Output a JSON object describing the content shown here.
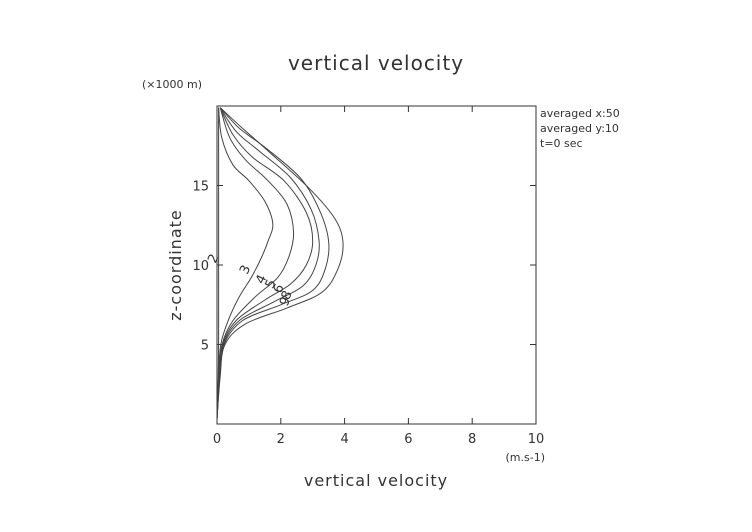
{
  "chart_data": {
    "type": "line",
    "title": "vertical velocity",
    "xlabel": "vertical velocity",
    "x_unit": "(m.s-1)",
    "ylabel": "z-coordinate",
    "y_unit": "(×1000 m)",
    "xlim": [
      0,
      10
    ],
    "ylim": [
      0,
      20
    ],
    "x_ticks": [
      0,
      2,
      4,
      6,
      8,
      10
    ],
    "y_ticks": [
      5,
      10,
      15
    ],
    "grid": false,
    "annotations": [
      "averaged  x:50",
      "averaged  y:10",
      "t=0 sec"
    ],
    "series": [
      {
        "name": "2",
        "label_at": [
          0.0,
          10.3
        ],
        "points": [
          [
            0,
            0.3
          ],
          [
            0.03,
            2
          ],
          [
            0.05,
            5
          ],
          [
            0.05,
            10
          ],
          [
            0.05,
            15
          ],
          [
            0.05,
            19.9
          ]
        ]
      },
      {
        "name": "3",
        "label_at": [
          1.0,
          9.6
        ],
        "points": [
          [
            0,
            0.3
          ],
          [
            0.05,
            3
          ],
          [
            0.12,
            5
          ],
          [
            0.35,
            6.5
          ],
          [
            0.7,
            8.0
          ],
          [
            1.1,
            9.3
          ],
          [
            1.4,
            10.5
          ],
          [
            1.6,
            11.5
          ],
          [
            1.75,
            12.6
          ],
          [
            1.5,
            14.0
          ],
          [
            1.0,
            15.3
          ],
          [
            0.5,
            16.3
          ],
          [
            0.15,
            18.0
          ],
          [
            0.05,
            19.9
          ]
        ]
      },
      {
        "name": "4",
        "label_at": [
          1.5,
          9.0
        ],
        "points": [
          [
            0,
            0.3
          ],
          [
            0.06,
            3
          ],
          [
            0.16,
            5
          ],
          [
            0.5,
            6.5
          ],
          [
            1.2,
            8.0
          ],
          [
            1.9,
            9.2
          ],
          [
            2.25,
            10.5
          ],
          [
            2.4,
            12.0
          ],
          [
            2.2,
            13.8
          ],
          [
            1.6,
            15.3
          ],
          [
            0.9,
            16.6
          ],
          [
            0.4,
            18.0
          ],
          [
            0.1,
            19.9
          ]
        ]
      },
      {
        "name": "5",
        "label_at": [
          1.8,
          8.7
        ],
        "points": [
          [
            0,
            0.3
          ],
          [
            0.07,
            3
          ],
          [
            0.18,
            5
          ],
          [
            0.6,
            6.5
          ],
          [
            1.5,
            7.8
          ],
          [
            2.3,
            8.8
          ],
          [
            2.8,
            10.0
          ],
          [
            3.0,
            11.5
          ],
          [
            2.8,
            13.3
          ],
          [
            2.1,
            15.3
          ],
          [
            1.1,
            16.8
          ],
          [
            0.5,
            18.2
          ],
          [
            0.1,
            19.9
          ]
        ]
      },
      {
        "name": "6",
        "label_at": [
          2.05,
          8.4
        ],
        "points": [
          [
            0,
            0.3
          ],
          [
            0.08,
            3
          ],
          [
            0.2,
            5
          ],
          [
            0.7,
            6.5
          ],
          [
            1.8,
            7.7
          ],
          [
            2.7,
            8.7
          ],
          [
            3.1,
            10.0
          ],
          [
            3.2,
            11.5
          ],
          [
            2.95,
            13.5
          ],
          [
            2.3,
            15.5
          ],
          [
            1.3,
            17.2
          ],
          [
            0.6,
            18.4
          ],
          [
            0.1,
            19.9
          ]
        ]
      },
      {
        "name": "8",
        "label_at": [
          2.3,
          8.0
        ],
        "points": [
          [
            0,
            0.3
          ],
          [
            0.09,
            3
          ],
          [
            0.22,
            5
          ],
          [
            0.8,
            6.5
          ],
          [
            2.0,
            7.5
          ],
          [
            3.0,
            8.4
          ],
          [
            3.4,
            9.8
          ],
          [
            3.5,
            11.5
          ],
          [
            3.2,
            13.5
          ],
          [
            2.6,
            15.5
          ],
          [
            1.5,
            17.4
          ],
          [
            0.7,
            18.6
          ],
          [
            0.1,
            19.9
          ]
        ]
      },
      {
        "name": "9",
        "label_at": [
          2.25,
          7.6
        ],
        "points": [
          [
            0,
            0.3
          ],
          [
            0.1,
            3
          ],
          [
            0.25,
            5
          ],
          [
            0.9,
            6.3
          ],
          [
            2.2,
            7.3
          ],
          [
            3.3,
            8.3
          ],
          [
            3.8,
            9.8
          ],
          [
            3.95,
            11.4
          ],
          [
            3.7,
            12.9
          ],
          [
            2.9,
            14.8
          ],
          [
            1.7,
            17.0
          ],
          [
            0.8,
            18.6
          ],
          [
            0.1,
            19.9
          ]
        ]
      }
    ]
  }
}
